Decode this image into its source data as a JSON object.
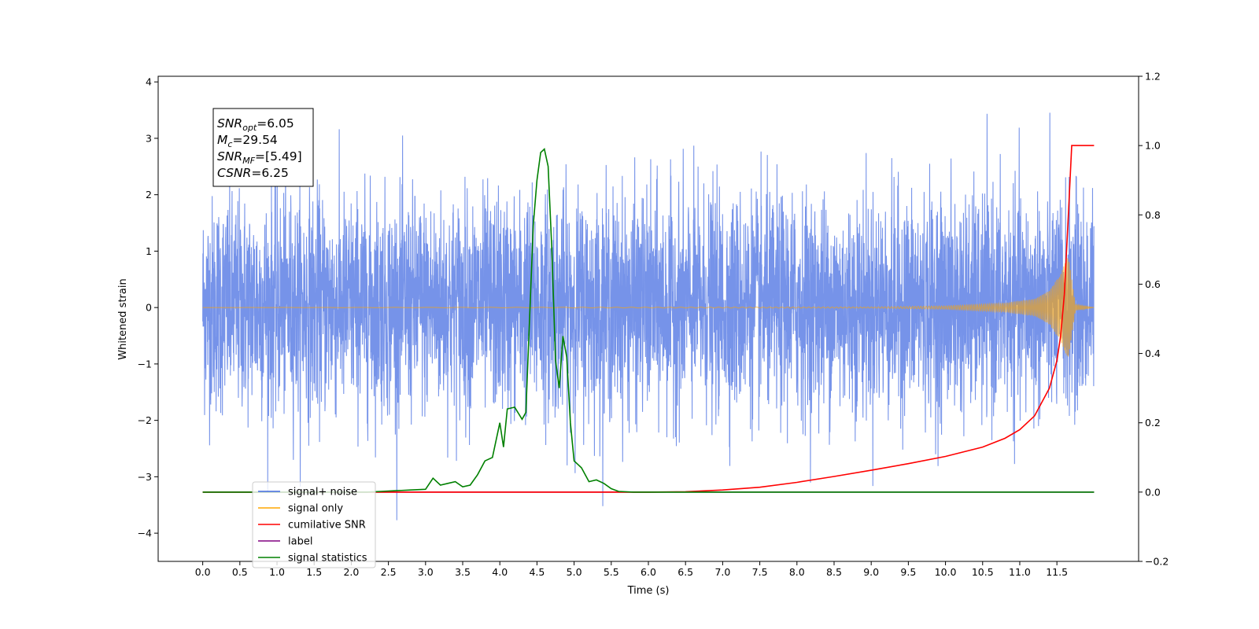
{
  "chart_data": {
    "type": "line",
    "xlabel": "Time (s)",
    "ylabel_left": "Whitened strain",
    "ylabel_right": "",
    "xlim": [
      -0.6,
      12.6
    ],
    "ylim_left": [
      -4.5,
      4.1
    ],
    "ylim_right": [
      -0.2,
      1.2
    ],
    "x_ticks": [
      0.0,
      0.5,
      1.0,
      1.5,
      2.0,
      2.5,
      3.0,
      3.5,
      4.0,
      4.5,
      5.0,
      5.5,
      6.0,
      6.5,
      7.0,
      7.5,
      8.0,
      8.5,
      9.0,
      9.5,
      10.0,
      10.5,
      11.0,
      11.5
    ],
    "x_tick_labels": [
      "0.0",
      "0.5",
      "1.0",
      "1.5",
      "2.0",
      "2.5",
      "3.0",
      "3.5",
      "4.0",
      "4.5",
      "5.0",
      "5.5",
      "6.0",
      "6.5",
      "7.0",
      "7.5",
      "8.0",
      "8.5",
      "9.0",
      "9.5",
      "10.0",
      "10.5",
      "11.0",
      "11.5"
    ],
    "y_left_ticks": [
      4,
      3,
      2,
      1,
      0,
      -1,
      -2,
      -3,
      -4
    ],
    "y_left_tick_labels": [
      "4",
      "3",
      "2",
      "1",
      "0",
      "−1",
      "−2",
      "−3",
      "−4"
    ],
    "y_right_ticks": [
      1.2,
      1.0,
      0.8,
      0.6,
      0.4,
      0.2,
      0.0,
      -0.2
    ],
    "y_right_tick_labels": [
      "1.2",
      "1.0",
      "0.8",
      "0.6",
      "0.4",
      "0.2",
      "0.0",
      "−0.2"
    ],
    "grid": false,
    "legend_position": "lower-left",
    "series": [
      {
        "name": "signal+ noise",
        "color": "#4169e1",
        "axis": "left",
        "x_range": [
          0.0,
          12.0
        ],
        "peak_y": 3.65,
        "min_y": -4.1,
        "note_values": "white-noise, amplitude ~ ±2.5"
      },
      {
        "name": "signal only",
        "color": "#ffa500",
        "axis": "left",
        "x": [
          0.0,
          9.0,
          10.0,
          10.8,
          11.2,
          11.4,
          11.55,
          11.65,
          11.75,
          12.0
        ],
        "amplitude": [
          0.0,
          0.01,
          0.03,
          0.08,
          0.15,
          0.3,
          0.6,
          0.95,
          0.05,
          0.0
        ]
      },
      {
        "name": "cumilative SNR",
        "color": "#ff0000",
        "axis": "right",
        "x": [
          0.0,
          5.5,
          6.0,
          6.5,
          7.0,
          7.5,
          8.0,
          8.5,
          9.0,
          9.5,
          10.0,
          10.5,
          10.8,
          11.0,
          11.2,
          11.4,
          11.5,
          11.55,
          11.6,
          11.65,
          11.7,
          11.75,
          12.0
        ],
        "y": [
          0.0,
          0.0,
          0.0,
          0.001,
          0.006,
          0.014,
          0.028,
          0.045,
          0.063,
          0.082,
          0.103,
          0.13,
          0.155,
          0.18,
          0.22,
          0.3,
          0.38,
          0.45,
          0.57,
          0.78,
          1.0,
          1.0,
          1.0
        ]
      },
      {
        "name": "label",
        "color": "#800080",
        "axis": "right",
        "x": [
          0.0,
          12.0
        ],
        "y": [
          0.0,
          0.0
        ]
      },
      {
        "name": "signal statistics",
        "color": "#008000",
        "axis": "right",
        "x": [
          0.0,
          2.2,
          2.4,
          2.6,
          2.8,
          3.0,
          3.1,
          3.2,
          3.3,
          3.4,
          3.5,
          3.6,
          3.7,
          3.8,
          3.9,
          4.0,
          4.05,
          4.1,
          4.2,
          4.3,
          4.35,
          4.4,
          4.45,
          4.5,
          4.55,
          4.6,
          4.65,
          4.7,
          4.75,
          4.8,
          4.85,
          4.9,
          4.95,
          5.0,
          5.05,
          5.1,
          5.2,
          5.3,
          5.4,
          5.5,
          5.6,
          5.8,
          6.0,
          12.0
        ],
        "y": [
          0.0,
          0.0,
          0.002,
          0.004,
          0.006,
          0.008,
          0.04,
          0.02,
          0.025,
          0.03,
          0.015,
          0.02,
          0.05,
          0.09,
          0.1,
          0.2,
          0.13,
          0.24,
          0.245,
          0.21,
          0.23,
          0.5,
          0.77,
          0.9,
          0.98,
          0.99,
          0.94,
          0.7,
          0.38,
          0.3,
          0.45,
          0.39,
          0.2,
          0.09,
          0.08,
          0.07,
          0.03,
          0.035,
          0.025,
          0.01,
          0.002,
          0.0,
          0.0,
          0.0
        ]
      },
      {
        "name": "signal only",
        "color": "#800080",
        "axis": "right",
        "legend_hidden": true
      }
    ],
    "annotation": {
      "lines": [
        {
          "sym": "SNR",
          "sub": "opt",
          "val": "=6.05"
        },
        {
          "sym": "M",
          "sub": "c",
          "val": "=29.54"
        },
        {
          "sym": "SNR",
          "sub": "MF",
          "val": "=[5.49]"
        },
        {
          "sym": "CSNR",
          "sub": "",
          "val": "=6.25"
        }
      ]
    },
    "legend_entries": [
      {
        "label": "signal+ noise",
        "color": "#4169e1"
      },
      {
        "label": "signal only",
        "color": "#ffa500"
      },
      {
        "label": "cumilative SNR",
        "color": "#ff0000"
      },
      {
        "label": "label",
        "color": "#800080"
      },
      {
        "label": "signal statistics",
        "color": "#008000"
      }
    ]
  }
}
